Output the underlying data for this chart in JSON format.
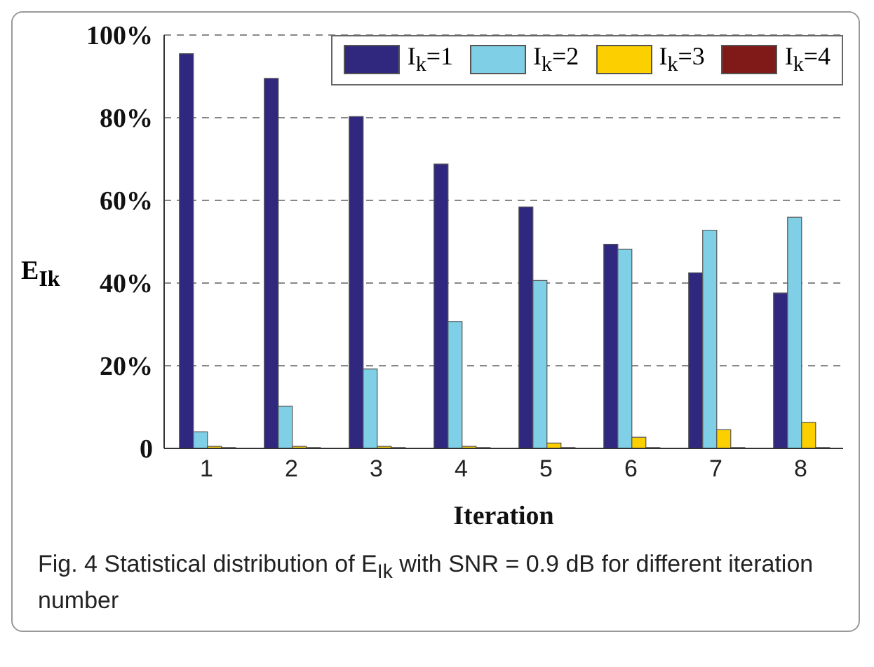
{
  "chart_data": {
    "type": "bar",
    "xlabel": "Iteration",
    "ylabel": "E$_{Ik}$",
    "categories": [
      "1",
      "2",
      "3",
      "4",
      "5",
      "6",
      "7",
      "8"
    ],
    "series": [
      {
        "name": "I$_{k}$=1",
        "color": "#30287f",
        "values": [
          95.5,
          89.5,
          80.3,
          68.8,
          58.4,
          49.4,
          42.5,
          37.6
        ]
      },
      {
        "name": "I$_{k}$=2",
        "color": "#7fcfe6",
        "values": [
          4.0,
          10.2,
          19.2,
          30.7,
          40.6,
          48.2,
          52.8,
          55.9
        ]
      },
      {
        "name": "I$_{k}$=3",
        "color": "#fccf00",
        "values": [
          0.5,
          0.5,
          0.5,
          0.5,
          1.3,
          2.7,
          4.5,
          6.3
        ]
      },
      {
        "name": "I$_{k}$=4",
        "color": "#7f1a18",
        "values": [
          0.2,
          0.2,
          0.2,
          0.2,
          0.2,
          0.2,
          0.2,
          0.2
        ]
      }
    ],
    "ylim": [
      0,
      100
    ],
    "yticks": [
      0,
      {
        "value": 20,
        "label": "20%"
      },
      {
        "value": 40,
        "label": "40%"
      },
      {
        "value": 60,
        "label": "60%"
      },
      {
        "value": 80,
        "label": "80%"
      },
      {
        "value": 100,
        "label": "100%"
      }
    ],
    "grid": "y",
    "legend": "top right",
    "annotations": [
      "Fig. 4 Statistical distribution of E$_{Ik}$ with SNR = 0.9 dB for different iteration number"
    ]
  }
}
